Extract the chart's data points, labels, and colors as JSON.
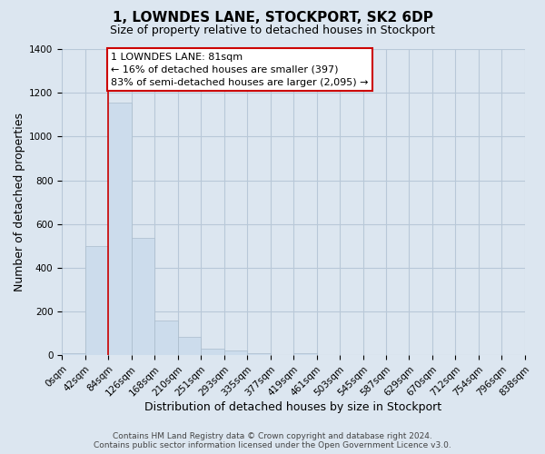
{
  "title": "1, LOWNDES LANE, STOCKPORT, SK2 6DP",
  "subtitle": "Size of property relative to detached houses in Stockport",
  "xlabel": "Distribution of detached houses by size in Stockport",
  "ylabel": "Number of detached properties",
  "bar_color": "#ccdcec",
  "bar_edgecolor": "#aabccc",
  "figure_background": "#dce6f0",
  "axes_background": "#dce6f0",
  "grid_color": "#b8c8d8",
  "bin_labels": [
    "0sqm",
    "42sqm",
    "84sqm",
    "126sqm",
    "168sqm",
    "210sqm",
    "251sqm",
    "293sqm",
    "335sqm",
    "377sqm",
    "419sqm",
    "461sqm",
    "503sqm",
    "545sqm",
    "587sqm",
    "629sqm",
    "670sqm",
    "712sqm",
    "754sqm",
    "796sqm",
    "838sqm"
  ],
  "bar_values": [
    10,
    500,
    1155,
    535,
    160,
    85,
    32,
    22,
    10,
    0,
    10,
    0,
    0,
    0,
    0,
    0,
    0,
    0,
    0,
    0
  ],
  "ylim": [
    0,
    1400
  ],
  "yticks": [
    0,
    200,
    400,
    600,
    800,
    1000,
    1200,
    1400
  ],
  "property_label": "1 LOWNDES LANE: 81sqm",
  "annotation_line1": "← 16% of detached houses are smaller (397)",
  "annotation_line2": "83% of semi-detached houses are larger (2,095) →",
  "red_line_x": 84,
  "bin_width": 42,
  "footer1": "Contains HM Land Registry data © Crown copyright and database right 2024.",
  "footer2": "Contains public sector information licensed under the Open Government Licence v3.0.",
  "annotation_box_facecolor": "#ffffff",
  "annotation_box_edgecolor": "#cc0000",
  "red_line_color": "#cc0000",
  "title_fontsize": 11,
  "subtitle_fontsize": 9,
  "axis_label_fontsize": 9,
  "tick_fontsize": 7.5,
  "annotation_fontsize": 8,
  "footer_fontsize": 6.5
}
